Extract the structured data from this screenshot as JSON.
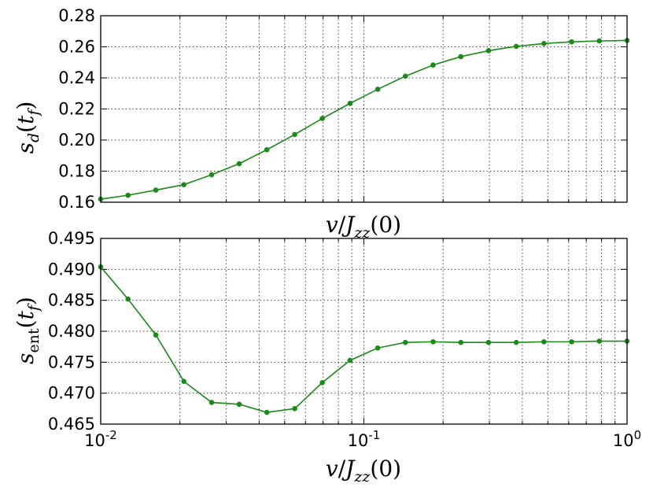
{
  "chart_data": [
    {
      "type": "line",
      "xscale": "log",
      "xlim": [
        0.01,
        1
      ],
      "ylim": [
        0.16,
        0.28
      ],
      "grid": true,
      "xlabel": "v/J_zz(0)",
      "ylabel": "s_d(t_f)",
      "yticks": [
        "0.16",
        "0.18",
        "0.20",
        "0.22",
        "0.24",
        "0.26",
        "0.28"
      ],
      "xticks": [],
      "color": "#1a8a1a",
      "series": [
        {
          "x": [
            0.01,
            0.0127,
            0.0162,
            0.0207,
            0.0264,
            0.0336,
            0.0428,
            0.0546,
            0.0695,
            0.0886,
            0.1129,
            0.1438,
            0.1833,
            0.2336,
            0.2976,
            0.3793,
            0.4833,
            0.6158,
            0.7848,
            1.0
          ],
          "y": [
            0.162,
            0.1645,
            0.1678,
            0.1713,
            0.1777,
            0.1848,
            0.1938,
            0.2036,
            0.2139,
            0.2236,
            0.2327,
            0.2411,
            0.2483,
            0.2537,
            0.2575,
            0.2603,
            0.2621,
            0.2632,
            0.2638,
            0.2641
          ]
        }
      ]
    },
    {
      "type": "line",
      "xscale": "log",
      "xlim": [
        0.01,
        1
      ],
      "ylim": [
        0.465,
        0.495
      ],
      "grid": true,
      "xlabel": "v/J_zz(0)",
      "ylabel": "s_ent(t_f)",
      "yticks": [
        "0.465",
        "0.470",
        "0.475",
        "0.480",
        "0.485",
        "0.490",
        "0.495"
      ],
      "xticks": [
        {
          "base": "10",
          "exp": "-2"
        },
        {
          "base": "10",
          "exp": "-1"
        },
        {
          "base": "10",
          "exp": "0"
        }
      ],
      "color": "#1a8a1a",
      "series": [
        {
          "x": [
            0.01,
            0.0127,
            0.0162,
            0.0207,
            0.0264,
            0.0336,
            0.0428,
            0.0546,
            0.0695,
            0.0886,
            0.1129,
            0.1438,
            0.1833,
            0.2336,
            0.2976,
            0.3793,
            0.4833,
            0.6158,
            0.7848,
            1.0
          ],
          "y": [
            0.4904,
            0.4852,
            0.4794,
            0.4719,
            0.4685,
            0.4682,
            0.4669,
            0.4675,
            0.4717,
            0.4753,
            0.4773,
            0.4782,
            0.4783,
            0.4782,
            0.4782,
            0.4782,
            0.4783,
            0.4783,
            0.4784,
            0.4784
          ]
        }
      ]
    }
  ],
  "labels": {
    "top_xlabel": {
      "v": "v",
      "slash": "/",
      "J": "J",
      "sub": "zz",
      "arg": "(0)"
    },
    "bottom_xlabel": {
      "v": "v",
      "slash": "/",
      "J": "J",
      "sub": "zz",
      "arg": "(0)"
    },
    "top_ylabel": {
      "s": "s",
      "sub": "d",
      "arg_open": "(",
      "t": "t",
      "tsub": "f",
      "arg_close": ")"
    },
    "bottom_ylabel": {
      "s": "s",
      "sub": "ent",
      "arg_open": "(",
      "t": "t",
      "tsub": "f",
      "arg_close": ")"
    }
  }
}
